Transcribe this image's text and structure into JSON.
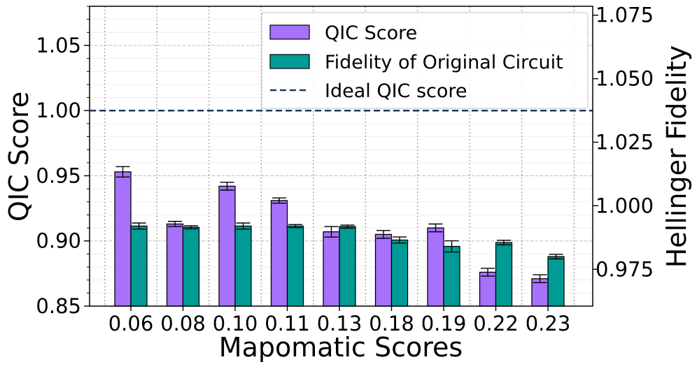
{
  "chart_data": {
    "type": "bar",
    "xlabel": "Mapomatic Scores",
    "ylabel": "QIC Score",
    "y2label": "Hellinger Fidelity",
    "categories": [
      "0.06",
      "0.08",
      "0.10",
      "0.11",
      "0.13",
      "0.18",
      "0.19",
      "0.22",
      "0.23"
    ],
    "ylim": [
      0.85,
      1.08
    ],
    "y2lim": [
      0.9605,
      1.0785
    ],
    "yticks": [
      "0.85",
      "0.90",
      "0.95",
      "1.00",
      "1.05"
    ],
    "y2ticks": [
      "0.975",
      "1.000",
      "1.025",
      "1.050",
      "1.075"
    ],
    "grid": true,
    "legend_position": "top-right",
    "series": [
      {
        "name": "QIC Score",
        "axis": "left",
        "color": "#a772fb",
        "values": [
          0.953,
          0.913,
          0.942,
          0.931,
          0.907,
          0.905,
          0.91,
          0.876,
          0.871
        ],
        "errors": [
          0.004,
          0.002,
          0.003,
          0.002,
          0.004,
          0.003,
          0.003,
          0.003,
          0.003
        ]
      },
      {
        "name": "Fidelity of Original Circuit",
        "axis": "right",
        "color": "#009b95",
        "values": [
          0.992,
          0.9915,
          0.992,
          0.992,
          0.9918,
          0.9865,
          0.984,
          0.9855,
          0.98
        ],
        "errors": [
          0.0012,
          0.0006,
          0.0012,
          0.0006,
          0.0006,
          0.0012,
          0.0022,
          0.0009,
          0.0009
        ]
      }
    ],
    "reference_line": {
      "name": "Ideal QIC score",
      "y": 1.0,
      "color": "#1b3a5a",
      "style": "dashed"
    }
  }
}
